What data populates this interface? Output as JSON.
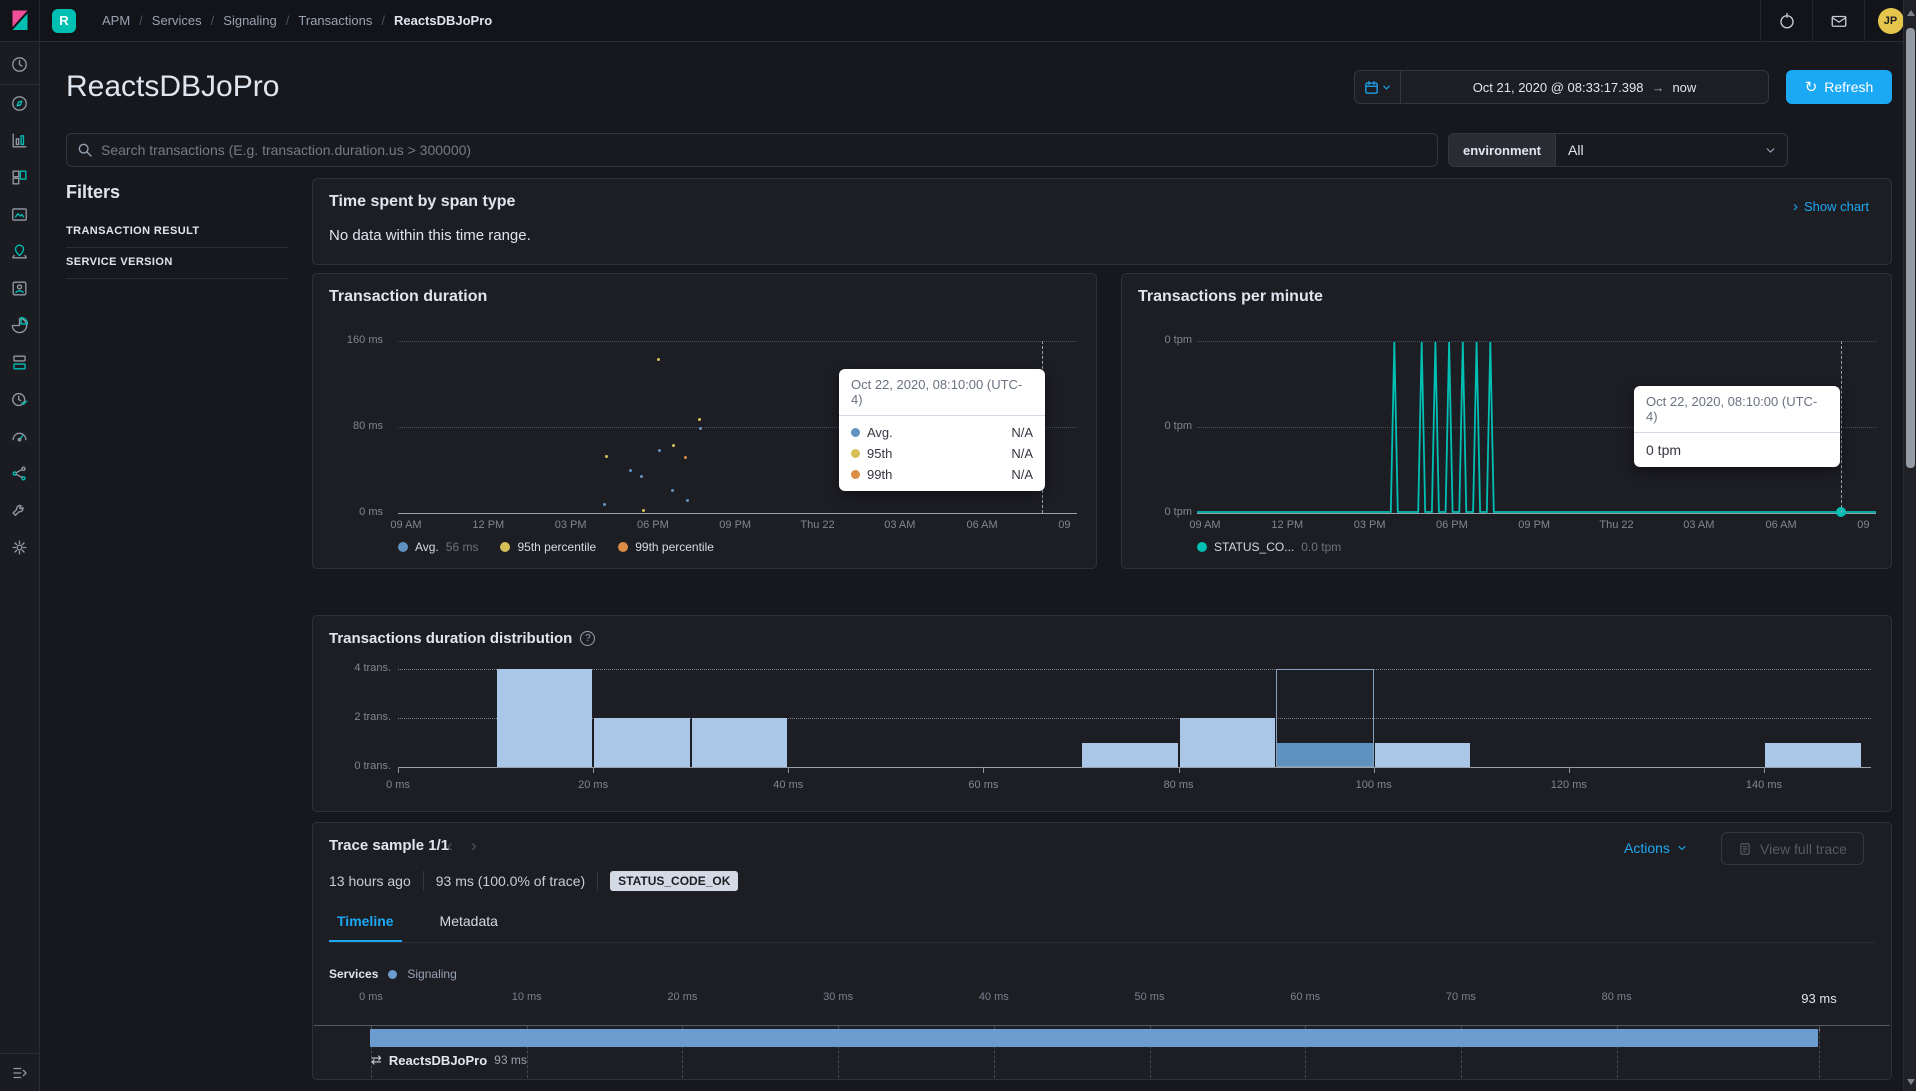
{
  "header": {
    "space_badge": "R",
    "breadcrumbs": [
      "APM",
      "Services",
      "Signaling",
      "Transactions",
      "ReactsDBJoPro"
    ],
    "avatar_initials": "JP"
  },
  "page_title": "ReactsDBJoPro",
  "toolbar": {
    "date_start": "Oct 21, 2020 @ 08:33:17.398",
    "date_end": "now",
    "refresh_label": "Refresh"
  },
  "search": {
    "placeholder": "Search transactions (E.g. transaction.duration.us > 300000)",
    "environment_label": "environment",
    "environment_value": "All"
  },
  "filters": {
    "title": "Filters",
    "sections": [
      "TRANSACTION RESULT",
      "SERVICE VERSION"
    ]
  },
  "span_type_panel": {
    "title": "Time spent by span type",
    "empty_message": "No data within this time range.",
    "show_chart_label": "Show chart"
  },
  "trace_sample": {
    "title": "Trace sample 1/1",
    "timestamp_relative": "13 hours ago",
    "duration": "93 ms",
    "trace_percent": "(100.0% of trace)",
    "status_badge": "STATUS_CODE_OK",
    "tabs": [
      "Timeline",
      "Metadata"
    ],
    "active_tab": "Timeline",
    "actions_label": "Actions",
    "view_full_trace_label": "View full trace",
    "services_label": "Services",
    "service_legend": "Signaling"
  },
  "colors": {
    "accent_blue": "#1ba9f5",
    "teal": "#00bfb3",
    "series_blue": "#6092C0",
    "series_yellow": "#D6BF57",
    "series_orange": "#DA8B45",
    "bar_fill": "#abc7e8",
    "bar_selected": "#6092C0",
    "waterfall_bar": "#6c9bd0"
  },
  "sidebar_icons": [
    "recently-viewed",
    "discover",
    "visualize",
    "dashboard",
    "canvas",
    "maps",
    "machine-learning",
    "graph",
    "metrics",
    "uptime",
    "apm",
    "security",
    "dev-tools",
    "management"
  ],
  "chart_data": [
    {
      "id": "transaction_duration",
      "type": "scatter",
      "title": "Transaction duration",
      "y_ticks": [
        "160 ms",
        "80 ms",
        "0 ms"
      ],
      "y_max_ms": 160,
      "x_ticks": [
        "09 AM",
        "12 PM",
        "03 PM",
        "06 PM",
        "09 PM",
        "Thu 22",
        "03 AM",
        "06 AM",
        "09"
      ],
      "x_range_hours": 24,
      "grid": true,
      "legend_position": "bottom",
      "series_colors": {
        "Avg.": "#6092C0",
        "95th": "#D6BF57",
        "99th": "#DA8B45"
      },
      "legend": [
        {
          "label": "Avg.",
          "value": "56 ms",
          "color": "#6092C0"
        },
        {
          "label": "95th percentile",
          "value": "",
          "color": "#D6BF57"
        },
        {
          "label": "99th percentile",
          "value": "",
          "color": "#DA8B45"
        }
      ],
      "points": [
        {
          "hours": 9.2,
          "ms": 143,
          "series": "95th"
        },
        {
          "hours": 10.7,
          "ms": 87,
          "series": "95th"
        },
        {
          "hours": 10.75,
          "ms": 79,
          "series": "Avg."
        },
        {
          "hours": 9.75,
          "ms": 63,
          "series": "95th"
        },
        {
          "hours": 9.25,
          "ms": 58,
          "series": "Avg."
        },
        {
          "hours": 7.3,
          "ms": 53,
          "series": "95th"
        },
        {
          "hours": 10.2,
          "ms": 52,
          "series": "99th"
        },
        {
          "hours": 8.2,
          "ms": 40,
          "series": "Avg."
        },
        {
          "hours": 8.6,
          "ms": 34,
          "series": "Avg."
        },
        {
          "hours": 9.7,
          "ms": 21,
          "series": "Avg."
        },
        {
          "hours": 10.25,
          "ms": 12,
          "series": "Avg."
        },
        {
          "hours": 7.25,
          "ms": 8,
          "series": "Avg."
        },
        {
          "hours": 8.65,
          "ms": 2,
          "series": "95th"
        }
      ],
      "tooltip": {
        "header": "Oct 22, 2020, 08:10:00 (UTC-4)",
        "rows": [
          {
            "label": "Avg.",
            "value": "N/A",
            "color": "#6092C0"
          },
          {
            "label": "95th",
            "value": "N/A",
            "color": "#D6BF57"
          },
          {
            "label": "99th",
            "value": "N/A",
            "color": "#DA8B45"
          }
        ]
      },
      "crosshair_hours": 23.2
    },
    {
      "id": "transactions_per_minute",
      "type": "line",
      "title": "Transactions per minute",
      "y_ticks": [
        "0 tpm",
        "0 tpm",
        "0 tpm"
      ],
      "x_ticks": [
        "09 AM",
        "12 PM",
        "03 PM",
        "06 PM",
        "09 PM",
        "Thu 22",
        "03 AM",
        "06 AM",
        "09"
      ],
      "x_range_hours": 24,
      "grid": true,
      "legend": [
        {
          "label": "STATUS_CO...",
          "value": "0.0 tpm",
          "color": "#00bfb3"
        }
      ],
      "spike_hours": [
        6.9,
        7.9,
        8.4,
        8.9,
        9.4,
        9.9,
        10.4
      ],
      "tooltip": {
        "header": "Oct 22, 2020, 08:10:00 (UTC-4)",
        "value": "0 tpm"
      },
      "crosshair_hours": 23.2
    },
    {
      "id": "duration_distribution",
      "type": "bar",
      "title": "Transactions duration distribution",
      "y_ticks": [
        "4 trans.",
        "2 trans.",
        "0 trans."
      ],
      "y_max": 4,
      "x_ticks": [
        "0 ms",
        "20 ms",
        "40 ms",
        "60 ms",
        "80 ms",
        "100 ms",
        "120 ms",
        "140 ms"
      ],
      "x_max_ms": 151,
      "bin_width_ms": 10,
      "bins": [
        {
          "start_ms": 10,
          "count": 4
        },
        {
          "start_ms": 20,
          "count": 2
        },
        {
          "start_ms": 30,
          "count": 2
        },
        {
          "start_ms": 70,
          "count": 1
        },
        {
          "start_ms": 80,
          "count": 2
        },
        {
          "start_ms": 90,
          "count": 1,
          "selected": true
        },
        {
          "start_ms": 100,
          "count": 1
        },
        {
          "start_ms": 140,
          "count": 1
        }
      ]
    },
    {
      "id": "trace_timeline",
      "type": "waterfall",
      "x_ticks": [
        "0 ms",
        "10 ms",
        "20 ms",
        "30 ms",
        "40 ms",
        "50 ms",
        "60 ms",
        "70 ms",
        "80 ms"
      ],
      "end_tick": "93 ms",
      "total_ms": 93,
      "items": [
        {
          "label": "ReactsDBJoPro",
          "start_ms": 0,
          "duration_ms": 93,
          "duration_label": "93 ms"
        }
      ]
    }
  ]
}
